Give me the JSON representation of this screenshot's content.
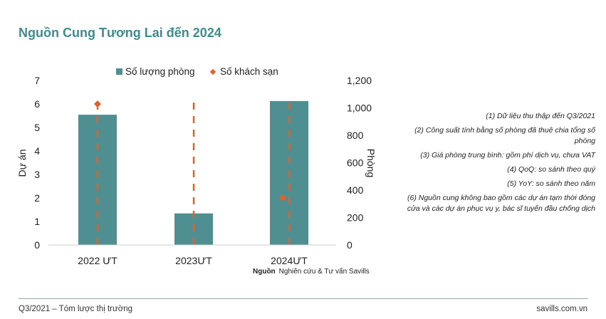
{
  "page": {
    "title": "Nguồn Cung Tương Lai đến 2024",
    "source_label": "Nguồn",
    "source_text": "Nghiên cứu & Tư vấn Savills",
    "notes": [
      "(1) Dữ liệu thu thập đến Q3/2021",
      "(2) Công suất tính bằng số phòng đã thuê chia tổng số phòng",
      "(3) Giá phòng trung bình: gồm phí dịch vụ, chưa VAT",
      "(4) QoQ: so sánh theo quý",
      "(5) YoY: so sánh theo năm",
      "(6) Nguồn cung không bao gồm các dự án tạm thời đóng cửa và các dự án phục vụ y, bác sĩ tuyến đầu chống dịch"
    ],
    "footer_left": "Q3/2021 – Tóm lược thị trường",
    "footer_right": "savills.com.vn"
  },
  "chart_data": {
    "type": "bar",
    "categories": [
      "2022 ƯT",
      "2023ƯT",
      "2024ƯT"
    ],
    "series": [
      {
        "name": "Số lượng phòng",
        "kind": "bar",
        "axis": "right",
        "values": [
          950,
          230,
          1050
        ],
        "color": "#4f8f92"
      },
      {
        "name": "Số khách sạn",
        "kind": "marker",
        "axis": "left",
        "values": [
          6,
          0,
          2
        ],
        "color": "#e0622b"
      }
    ],
    "y_left": {
      "label": "Dự án",
      "min": 0,
      "max": 7,
      "ticks": [
        "0",
        "1",
        "2",
        "3",
        "4",
        "5",
        "6",
        "7"
      ]
    },
    "y_right": {
      "label": "Phòng",
      "min": 0,
      "max": 1200,
      "ticks": [
        "0",
        "200",
        "400",
        "600",
        "800",
        "1,000",
        "1,200"
      ]
    },
    "dash_color": "#e0622b",
    "legend_position": "top-center"
  }
}
